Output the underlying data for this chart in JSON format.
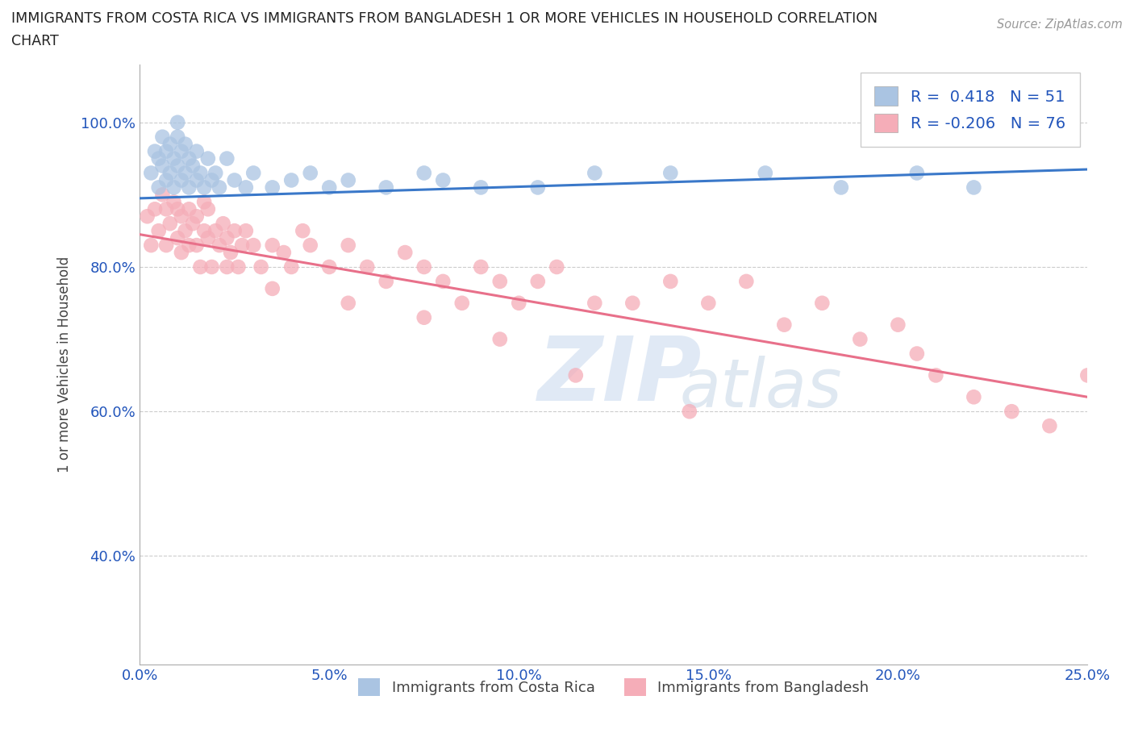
{
  "title_line1": "IMMIGRANTS FROM COSTA RICA VS IMMIGRANTS FROM BANGLADESH 1 OR MORE VEHICLES IN HOUSEHOLD CORRELATION",
  "title_line2": "CHART",
  "source": "Source: ZipAtlas.com",
  "ylabel": "1 or more Vehicles in Household",
  "xlim": [
    0.0,
    25.0
  ],
  "ylim": [
    25.0,
    108.0
  ],
  "xticks": [
    0.0,
    5.0,
    10.0,
    15.0,
    20.0,
    25.0
  ],
  "yticks": [
    40.0,
    60.0,
    80.0,
    100.0
  ],
  "ytick_labels": [
    "40.0%",
    "60.0%",
    "80.0%",
    "100.0%"
  ],
  "xtick_labels": [
    "0.0%",
    "5.0%",
    "10.0%",
    "15.0%",
    "20.0%",
    "25.0%"
  ],
  "costa_rica_color": "#aac4e2",
  "bangladesh_color": "#f5adb8",
  "costa_rica_line_color": "#3a78c9",
  "bangladesh_line_color": "#e8708a",
  "costa_rica_R": 0.418,
  "costa_rica_N": 51,
  "bangladesh_R": -0.206,
  "bangladesh_N": 76,
  "cr_line_x0": 0.0,
  "cr_line_y0": 89.5,
  "cr_line_x1": 25.0,
  "cr_line_y1": 93.5,
  "bd_line_x0": 0.0,
  "bd_line_y0": 84.5,
  "bd_line_x1": 25.0,
  "bd_line_y1": 62.0,
  "costa_rica_x": [
    0.3,
    0.4,
    0.5,
    0.5,
    0.6,
    0.6,
    0.7,
    0.7,
    0.8,
    0.8,
    0.9,
    0.9,
    1.0,
    1.0,
    1.0,
    1.1,
    1.1,
    1.2,
    1.2,
    1.3,
    1.3,
    1.4,
    1.5,
    1.5,
    1.6,
    1.7,
    1.8,
    1.9,
    2.0,
    2.1,
    2.3,
    2.5,
    2.8,
    3.0,
    3.5,
    4.0,
    4.5,
    5.0,
    5.5,
    6.5,
    7.5,
    8.0,
    9.0,
    10.5,
    12.0,
    14.0,
    16.5,
    18.5,
    20.5,
    22.0,
    24.2
  ],
  "costa_rica_y": [
    93,
    96,
    91,
    95,
    94,
    98,
    92,
    96,
    93,
    97,
    91,
    95,
    94,
    98,
    100,
    92,
    96,
    93,
    97,
    91,
    95,
    94,
    92,
    96,
    93,
    91,
    95,
    92,
    93,
    91,
    95,
    92,
    91,
    93,
    91,
    92,
    93,
    91,
    92,
    91,
    93,
    92,
    91,
    91,
    93,
    93,
    93,
    91,
    93,
    91,
    100
  ],
  "bangladesh_x": [
    0.2,
    0.3,
    0.4,
    0.5,
    0.6,
    0.7,
    0.7,
    0.8,
    0.9,
    1.0,
    1.0,
    1.1,
    1.1,
    1.2,
    1.3,
    1.3,
    1.4,
    1.5,
    1.5,
    1.6,
    1.7,
    1.7,
    1.8,
    1.8,
    1.9,
    2.0,
    2.1,
    2.2,
    2.3,
    2.3,
    2.4,
    2.5,
    2.6,
    2.7,
    2.8,
    3.0,
    3.2,
    3.5,
    3.8,
    4.0,
    4.3,
    4.5,
    5.0,
    5.5,
    6.0,
    6.5,
    7.0,
    7.5,
    8.0,
    8.5,
    9.0,
    9.5,
    10.0,
    10.5,
    11.0,
    12.0,
    13.0,
    14.0,
    15.0,
    16.0,
    17.0,
    18.0,
    19.0,
    20.0,
    20.5,
    21.0,
    22.0,
    23.0,
    24.0,
    25.0,
    3.5,
    5.5,
    7.5,
    9.5,
    11.5,
    14.5
  ],
  "bangladesh_y": [
    87,
    83,
    88,
    85,
    90,
    83,
    88,
    86,
    89,
    84,
    88,
    87,
    82,
    85,
    88,
    83,
    86,
    83,
    87,
    80,
    85,
    89,
    84,
    88,
    80,
    85,
    83,
    86,
    80,
    84,
    82,
    85,
    80,
    83,
    85,
    83,
    80,
    83,
    82,
    80,
    85,
    83,
    80,
    83,
    80,
    78,
    82,
    80,
    78,
    75,
    80,
    78,
    75,
    78,
    80,
    75,
    75,
    78,
    75,
    78,
    72,
    75,
    70,
    72,
    68,
    65,
    62,
    60,
    58,
    65,
    77,
    75,
    73,
    70,
    65,
    60
  ]
}
